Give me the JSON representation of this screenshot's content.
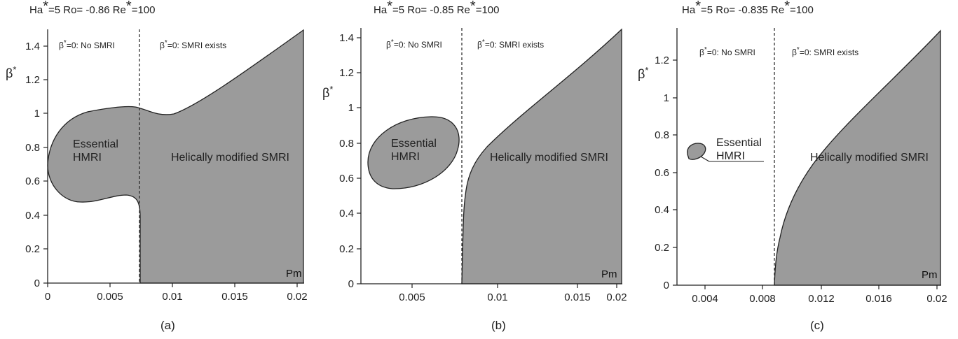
{
  "panels": [
    {
      "title_prefix": "Ha",
      "title_ha": "=5 Ro= -0.86 Re",
      "title_re": "=100",
      "sublabel": "(a)",
      "ylabel": "β",
      "ylabel_sup": "*",
      "xlabel": "Pm",
      "ann_left": "β",
      "ann_left_rest": "=0: No SMRI",
      "ann_right": "β",
      "ann_right_rest": "=0: SMRI exists",
      "region_hmri": [
        "Essential",
        "HMRI"
      ],
      "region_smri": "Helically modified SMRI"
    },
    {
      "title_prefix": "Ha",
      "title_ha": "=5 Ro= -0.85 Re",
      "title_re": "=100",
      "sublabel": "(b)",
      "ylabel": "β",
      "ylabel_sup": "*",
      "xlabel": "Pm",
      "ann_left": "β",
      "ann_left_rest": "=0: No SMRI",
      "ann_right": "β",
      "ann_right_rest": "=0: SMRI exists",
      "region_hmri": [
        "Essential",
        "HMRI"
      ],
      "region_smri": "Helically modified SMRI"
    },
    {
      "title_prefix": "Ha",
      "title_ha": "=5 Ro= -0.835 Re",
      "title_re": "=100",
      "sublabel": "(c)",
      "ylabel": "β",
      "ylabel_sup": "*",
      "xlabel": "Pm",
      "ann_left": "β",
      "ann_left_rest": "=0: No SMRI",
      "ann_right": "β",
      "ann_right_rest": "=0: SMRI exists",
      "region_hmri": [
        "Essential",
        "HMRI"
      ],
      "region_smri": "Helically modified SMRI"
    }
  ],
  "chart_data": [
    {
      "type": "area",
      "title": "Ha*=5 Ro= -0.86 Re*=100",
      "xlabel": "Pm",
      "ylabel": "β*",
      "xlim": [
        0,
        0.0205
      ],
      "ylim": [
        0,
        1.5
      ],
      "xticks": [
        "0",
        "0.005",
        "0.01",
        "0.015",
        "0.02"
      ],
      "yticks": [
        "0",
        "0.2",
        "0.4",
        "0.6",
        "0.8",
        "1",
        "1.2",
        "1.4"
      ],
      "critical_pm": 0.0073,
      "fill_color": "#9b9b9b",
      "boundary": {
        "upper_x": [
          0,
          0.0003,
          0.0012,
          0.0025,
          0.004,
          0.0055,
          0.0068,
          0.0078,
          0.009,
          0.01,
          0.011,
          0.013,
          0.015,
          0.017,
          0.019,
          0.0205
        ],
        "upper_y": [
          0.72,
          0.85,
          0.94,
          1.0,
          1.03,
          1.04,
          1.04,
          1.03,
          1.0,
          0.99,
          1.02,
          1.12,
          1.23,
          1.33,
          1.42,
          1.49
        ],
        "lower_x": [
          0,
          0.0003,
          0.0012,
          0.0025,
          0.004,
          0.0055,
          0.0065,
          0.007,
          0.0073
        ],
        "lower_y": [
          0.72,
          0.62,
          0.53,
          0.49,
          0.49,
          0.51,
          0.51,
          0.47,
          0.4
        ]
      }
    },
    {
      "type": "area",
      "title": "Ha*=5 Ro= -0.85 Re*=100",
      "xlabel": "Pm",
      "ylabel": "β*",
      "xlim": [
        0.0008,
        0.0205
      ],
      "ylim": [
        0,
        1.45
      ],
      "xticks": [
        "0.005",
        "0.01",
        "0.015",
        "0.02"
      ],
      "yticks": [
        "0",
        "0.2",
        "0.4",
        "0.6",
        "0.8",
        "1",
        "1.2",
        "1.4"
      ],
      "critical_pm": 0.008,
      "fill_color": "#9b9b9b",
      "island": {
        "cx": 0.0045,
        "cy": 0.74,
        "note": "Essential HMRI ellipse, approx x 0.0015-0.0066, y 0.53-0.95"
      },
      "boundary": {
        "x": [
          0.008,
          0.0082,
          0.0085,
          0.009,
          0.0095,
          0.0105,
          0.012,
          0.014,
          0.016,
          0.018,
          0.0205
        ],
        "y": [
          0.0,
          0.2,
          0.5,
          0.68,
          0.75,
          0.83,
          0.93,
          1.06,
          1.18,
          1.3,
          1.45
        ]
      }
    },
    {
      "type": "area",
      "title": "Ha*=5 Ro= -0.835 Re*=100",
      "xlabel": "Pm",
      "ylabel": "β*",
      "xlim": [
        0.0022,
        0.0205
      ],
      "ylim": [
        0,
        1.38
      ],
      "xticks": [
        "0.004",
        "0.008",
        "0.012",
        "0.016",
        "0.02"
      ],
      "yticks": [
        "0",
        "0.2",
        "0.4",
        "0.6",
        "0.8",
        "1",
        "1.2"
      ],
      "critical_pm": 0.0087,
      "fill_color": "#9b9b9b",
      "island": {
        "cx": 0.0033,
        "cy": 0.71,
        "note": "small Essential HMRI blob"
      },
      "boundary": {
        "x": [
          0.0087,
          0.0089,
          0.0092,
          0.0097,
          0.0105,
          0.0115,
          0.013,
          0.015,
          0.017,
          0.019,
          0.0205
        ],
        "y": [
          0.0,
          0.12,
          0.25,
          0.4,
          0.56,
          0.7,
          0.86,
          1.02,
          1.16,
          1.28,
          1.36
        ]
      }
    }
  ]
}
